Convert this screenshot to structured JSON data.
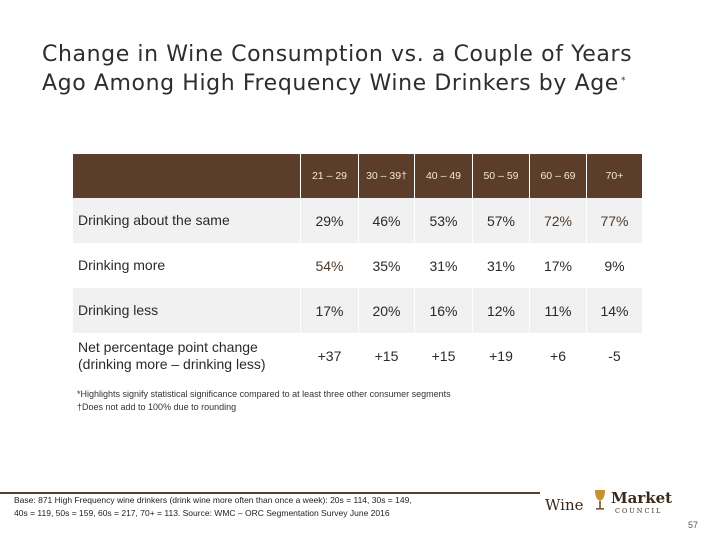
{
  "title": {
    "line1": "Change in Wine Consumption vs. a Couple of Years",
    "line2": "Ago Among High Frequency Wine Drinkers by Age",
    "marker": "*"
  },
  "table": {
    "columns": [
      "21 – 29",
      "30 – 39†",
      "40 – 49",
      "50 – 59",
      "60 – 69",
      "70+"
    ],
    "rows": [
      {
        "label": "Drinking about the same",
        "values": [
          "29%",
          "46%",
          "53%",
          "57%",
          "72%",
          "77%"
        ]
      },
      {
        "label": "Drinking more",
        "values": [
          "54%",
          "35%",
          "31%",
          "31%",
          "17%",
          "9%"
        ]
      },
      {
        "label": "Drinking less",
        "values": [
          "17%",
          "20%",
          "16%",
          "12%",
          "11%",
          "14%"
        ]
      },
      {
        "label_line1": "Net percentage point change",
        "label_line2": "(drinking more – drinking less)",
        "values": [
          "+37",
          "+15",
          "+15",
          "+19",
          "+6",
          "-5"
        ]
      }
    ]
  },
  "notes": {
    "line1": "*Highlights signify statistical significance compared to at least three other consumer segments",
    "line2": "†Does not add to 100% due to rounding"
  },
  "footer": {
    "line1": "Base: 871 High Frequency wine drinkers (drink wine more often than once a week): 20s = 114, 30s = 149,",
    "line2": "40s = 119, 50s = 159, 60s = 217, 70+ = 113.   Source: WMC – ORC Segmentation Survey June 2016"
  },
  "logo": {
    "wine": "Wine",
    "market": "Market",
    "council": "COUNCIL"
  },
  "page_number": "57",
  "colors": {
    "header": "#5b3d2a",
    "band": "#f1f1f1"
  }
}
